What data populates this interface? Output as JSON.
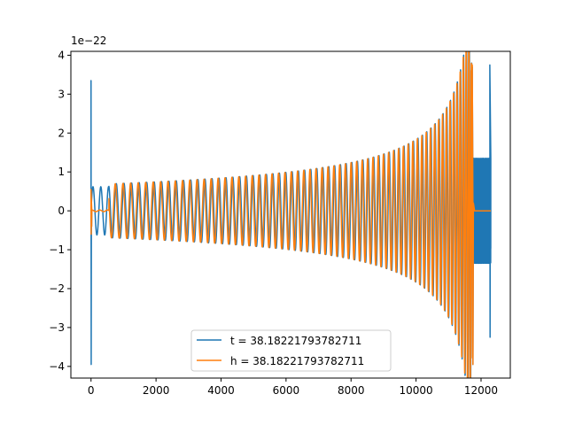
{
  "chart_data": {
    "type": "line",
    "title": "",
    "xlabel": "",
    "ylabel": "",
    "y_offset_text": "1e−22",
    "xlim": [
      -620,
      12900
    ],
    "ylim": [
      -4.3,
      4.1
    ],
    "x_ticks": [
      0,
      2000,
      4000,
      6000,
      8000,
      10000,
      12000
    ],
    "x_tick_labels": [
      "0",
      "2000",
      "4000",
      "6000",
      "8000",
      "10000",
      "12000"
    ],
    "y_ticks": [
      -4,
      -3,
      -2,
      -1,
      0,
      1,
      2,
      3,
      4
    ],
    "y_tick_labels": [
      "−4",
      "−3",
      "−2",
      "−1",
      "0",
      "1",
      "2",
      "3",
      "4"
    ],
    "grid": false,
    "legend_position": "bottom-center",
    "series": [
      {
        "name": "t = 38.18221793782711",
        "color": "#1f77b4",
        "shape": "chirp",
        "spike_x": 0,
        "spike_range": [
          -3.95,
          3.35
        ],
        "base_amplitude": 0.68,
        "peak_x": 11750,
        "peak_range": [
          -3.95,
          3.7
        ],
        "post_merger_x": [
          11750,
          12300
        ],
        "post_merger_amplitude": 1.35,
        "final_spike_x": 12270,
        "final_spike_range": [
          -3.25,
          3.75
        ]
      },
      {
        "name": "h = 38.18221793782711",
        "color": "#ff7f0e",
        "shape": "chirp",
        "spike_x": 0,
        "spike_range": [
          -0.6,
          0.55
        ],
        "base_amplitude": 0.68,
        "peak_x": 11750,
        "peak_range": [
          -3.95,
          3.75
        ],
        "flat_after_x": 11800,
        "flat_until_x": 12300
      }
    ]
  }
}
